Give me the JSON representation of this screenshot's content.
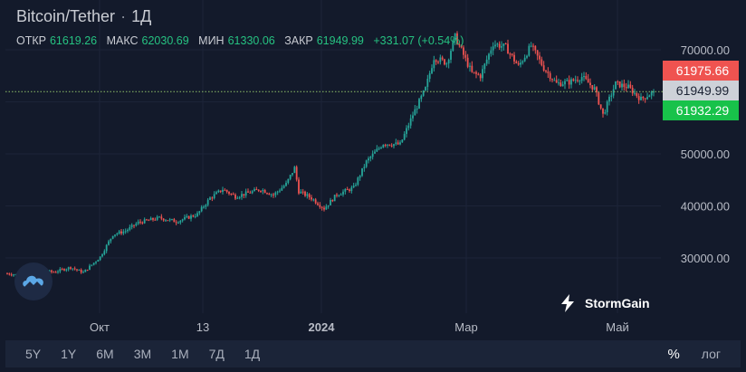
{
  "header": {
    "symbol": "Bitcoin/Tether",
    "interval": "1Д"
  },
  "ohlc": {
    "open_label": "ОТКР",
    "open": "61619.26",
    "high_label": "МАКС",
    "high": "62030.69",
    "low_label": "МИН",
    "low": "61330.06",
    "close_label": "ЗАКР",
    "close": "61949.99",
    "change": "+331.07 (+0.54%)"
  },
  "price_tags": {
    "ask": "61975.66",
    "last": "61949.99",
    "bid": "61932.29"
  },
  "brand": "StormGain",
  "timeframes": [
    "5Y",
    "1Y",
    "6M",
    "3M",
    "1M",
    "7Д",
    "1Д"
  ],
  "toolbar": {
    "percent": "%",
    "log": "лог"
  },
  "colors": {
    "background": "#131a2b",
    "up": "#26a69a",
    "down": "#ef5350",
    "ask_tag": "#ef5350",
    "last_tag": "#cdd1d8",
    "bid_tag": "#18c24a",
    "dotted_line": "#8fbf6a"
  },
  "chart_data": {
    "type": "candlestick",
    "x_ticks": [
      "Окт",
      "13",
      "2024",
      "Мар",
      "Май"
    ],
    "y_ticks": [
      "70000.00",
      "60000.00",
      "50000.00",
      "40000.00",
      "30000.00"
    ],
    "y_tick_values": [
      70000,
      60000,
      50000,
      40000,
      30000
    ],
    "ylim": [
      22000,
      76000
    ],
    "last_price": 61949.99,
    "price_path": [
      {
        "t": 0,
        "p": 27000
      },
      {
        "t": 8,
        "p": 26600
      },
      {
        "t": 14,
        "p": 27500
      },
      {
        "t": 22,
        "p": 27300
      },
      {
        "t": 30,
        "p": 28200
      },
      {
        "t": 36,
        "p": 27200
      },
      {
        "t": 44,
        "p": 30200
      },
      {
        "t": 50,
        "p": 34500
      },
      {
        "t": 56,
        "p": 35200
      },
      {
        "t": 62,
        "p": 36800
      },
      {
        "t": 72,
        "p": 37700
      },
      {
        "t": 80,
        "p": 37000
      },
      {
        "t": 90,
        "p": 38400
      },
      {
        "t": 96,
        "p": 41500
      },
      {
        "t": 102,
        "p": 43200
      },
      {
        "t": 108,
        "p": 41800
      },
      {
        "t": 114,
        "p": 42500
      },
      {
        "t": 120,
        "p": 43200
      },
      {
        "t": 126,
        "p": 42100
      },
      {
        "t": 132,
        "p": 44200
      },
      {
        "t": 136,
        "p": 47300
      },
      {
        "t": 138,
        "p": 42800
      },
      {
        "t": 144,
        "p": 41500
      },
      {
        "t": 150,
        "p": 39500
      },
      {
        "t": 156,
        "p": 42200
      },
      {
        "t": 164,
        "p": 43500
      },
      {
        "t": 170,
        "p": 48500
      },
      {
        "t": 178,
        "p": 52000
      },
      {
        "t": 186,
        "p": 51800
      },
      {
        "t": 192,
        "p": 57500
      },
      {
        "t": 198,
        "p": 62500
      },
      {
        "t": 202,
        "p": 68500
      },
      {
        "t": 208,
        "p": 67500
      },
      {
        "t": 212,
        "p": 72500
      },
      {
        "t": 216,
        "p": 69000
      },
      {
        "t": 220,
        "p": 65500
      },
      {
        "t": 224,
        "p": 65000
      },
      {
        "t": 230,
        "p": 71200
      },
      {
        "t": 236,
        "p": 70500
      },
      {
        "t": 242,
        "p": 66800
      },
      {
        "t": 248,
        "p": 70800
      },
      {
        "t": 254,
        "p": 66500
      },
      {
        "t": 260,
        "p": 63500
      },
      {
        "t": 266,
        "p": 63800
      },
      {
        "t": 272,
        "p": 64800
      },
      {
        "t": 278,
        "p": 62500
      },
      {
        "t": 282,
        "p": 57500
      },
      {
        "t": 288,
        "p": 63500
      },
      {
        "t": 294,
        "p": 62800
      },
      {
        "t": 300,
        "p": 60500
      },
      {
        "t": 306,
        "p": 61950
      }
    ]
  }
}
